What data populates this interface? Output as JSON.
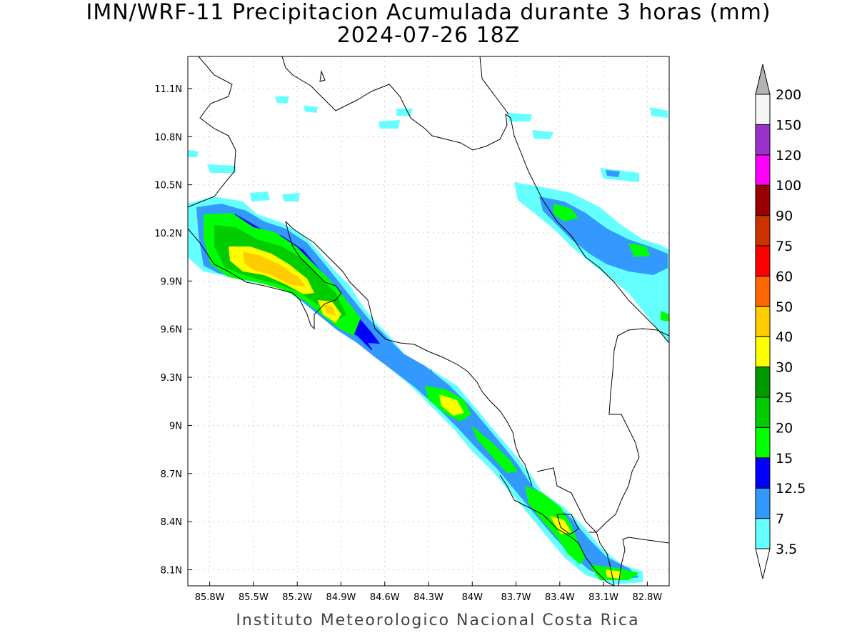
{
  "title": "IMN/WRF-11 Precipitacion Acumulada durante 3 horas (mm)",
  "subtitle": "2024-07-26 18Z",
  "footer": "Instituto Meteorologico Nacional Costa Rica",
  "map": {
    "lon_range": [
      -85.95,
      -82.65
    ],
    "lat_range": [
      8.0,
      11.3
    ],
    "lon_ticks": [
      {
        "value": -85.8,
        "label": "85.8W"
      },
      {
        "value": -85.5,
        "label": "85.5W"
      },
      {
        "value": -85.2,
        "label": "85.2W"
      },
      {
        "value": -84.9,
        "label": "84.9W"
      },
      {
        "value": -84.6,
        "label": "84.6W"
      },
      {
        "value": -84.3,
        "label": "84.3W"
      },
      {
        "value": -84.0,
        "label": "84W"
      },
      {
        "value": -83.7,
        "label": "83.7W"
      },
      {
        "value": -83.4,
        "label": "83.4W"
      },
      {
        "value": -83.1,
        "label": "83.1W"
      },
      {
        "value": -82.8,
        "label": "82.8W"
      }
    ],
    "lat_ticks": [
      {
        "value": 11.1,
        "label": "11.1N"
      },
      {
        "value": 10.8,
        "label": "10.8N"
      },
      {
        "value": 10.5,
        "label": "10.5N"
      },
      {
        "value": 10.2,
        "label": "10.2N"
      },
      {
        "value": 9.9,
        "label": "9.9N"
      },
      {
        "value": 9.6,
        "label": "9.6N"
      },
      {
        "value": 9.3,
        "label": "9.3N"
      },
      {
        "value": 9.0,
        "label": "9N"
      },
      {
        "value": 8.7,
        "label": "8.7N"
      },
      {
        "value": 8.4,
        "label": "8.4N"
      },
      {
        "value": 8.1,
        "label": "8.1N"
      }
    ]
  },
  "colorbar": {
    "levels": [
      {
        "label": "3.5",
        "color": "#66ffff"
      },
      {
        "label": "7",
        "color": "#3399ff"
      },
      {
        "label": "12.5",
        "color": "#0000ff"
      },
      {
        "label": "15",
        "color": "#00ff00"
      },
      {
        "label": "20",
        "color": "#00cc00"
      },
      {
        "label": "25",
        "color": "#009900"
      },
      {
        "label": "30",
        "color": "#ffff00"
      },
      {
        "label": "40",
        "color": "#ffcc00"
      },
      {
        "label": "50",
        "color": "#ff6600"
      },
      {
        "label": "60",
        "color": "#ff0000"
      },
      {
        "label": "75",
        "color": "#cc3300"
      },
      {
        "label": "90",
        "color": "#990000"
      },
      {
        "label": "100",
        "color": "#ff00ff"
      },
      {
        "label": "120",
        "color": "#9933cc"
      },
      {
        "label": "150",
        "color": "#f5f5f5"
      },
      {
        "label": "200",
        "color": "#b3b3b3"
      }
    ]
  }
}
